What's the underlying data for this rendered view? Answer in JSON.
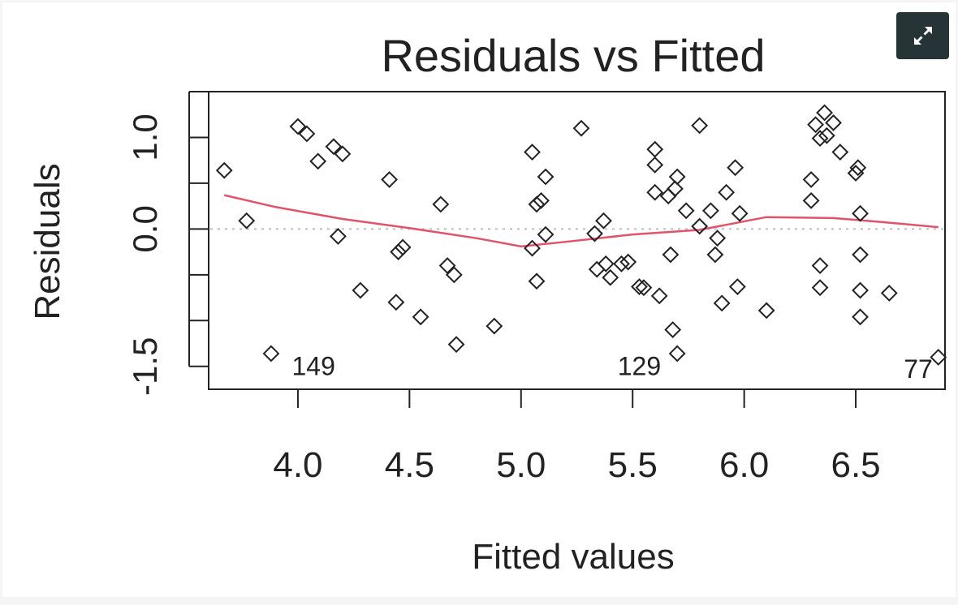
{
  "ui": {
    "expand_button_icon": "expand-arrows-icon"
  },
  "colors": {
    "points": "#222222",
    "smoother": "#df536b",
    "reference": "#bdbdbd",
    "button": "#263437"
  },
  "chart_data": {
    "type": "scatter",
    "title": "Residuals vs Fitted",
    "xlabel": "Fitted values",
    "ylabel": "Residuals",
    "xlim": [
      3.6,
      6.9
    ],
    "ylim": [
      -1.75,
      1.5
    ],
    "xticks": [
      4.0,
      4.5,
      5.0,
      5.5,
      6.0,
      6.5
    ],
    "xtick_labels": [
      "4.0",
      "4.5",
      "5.0",
      "5.5",
      "6.0",
      "6.5"
    ],
    "yticks": [
      -1.5,
      -1.0,
      -0.5,
      0.0,
      0.5,
      1.0,
      1.5
    ],
    "ytick_labels": [
      {
        "value": -1.5,
        "label": "-1.5"
      },
      {
        "value": 0.0,
        "label": "0.0"
      },
      {
        "value": 1.0,
        "label": "1.0"
      }
    ],
    "reference_line": 0.0,
    "points": [
      {
        "x": 3.67,
        "y": 0.64
      },
      {
        "x": 3.77,
        "y": 0.09
      },
      {
        "x": 3.88,
        "y": -1.36
      },
      {
        "x": 4.0,
        "y": 1.12
      },
      {
        "x": 4.04,
        "y": 1.04
      },
      {
        "x": 4.09,
        "y": 0.74
      },
      {
        "x": 4.16,
        "y": 0.9
      },
      {
        "x": 4.2,
        "y": 0.82
      },
      {
        "x": 4.18,
        "y": -0.08
      },
      {
        "x": 4.28,
        "y": -0.67
      },
      {
        "x": 4.41,
        "y": 0.54
      },
      {
        "x": 4.44,
        "y": -0.8
      },
      {
        "x": 4.45,
        "y": -0.25
      },
      {
        "x": 4.47,
        "y": -0.2
      },
      {
        "x": 4.55,
        "y": -0.96
      },
      {
        "x": 4.64,
        "y": 0.27
      },
      {
        "x": 4.67,
        "y": -0.4
      },
      {
        "x": 4.7,
        "y": -0.5
      },
      {
        "x": 4.71,
        "y": -1.26
      },
      {
        "x": 4.88,
        "y": -1.06
      },
      {
        "x": 5.05,
        "y": 0.84
      },
      {
        "x": 5.05,
        "y": -0.21
      },
      {
        "x": 5.07,
        "y": 0.27
      },
      {
        "x": 5.07,
        "y": -0.57
      },
      {
        "x": 5.09,
        "y": 0.31
      },
      {
        "x": 5.11,
        "y": 0.57
      },
      {
        "x": 5.11,
        "y": -0.06
      },
      {
        "x": 5.27,
        "y": 1.1
      },
      {
        "x": 5.33,
        "y": -0.05
      },
      {
        "x": 5.34,
        "y": -0.44
      },
      {
        "x": 5.37,
        "y": 0.09
      },
      {
        "x": 5.38,
        "y": -0.38
      },
      {
        "x": 5.4,
        "y": -0.53
      },
      {
        "x": 5.45,
        "y": -0.38
      },
      {
        "x": 5.48,
        "y": -0.36
      },
      {
        "x": 5.53,
        "y": -0.63
      },
      {
        "x": 5.55,
        "y": -0.64
      },
      {
        "x": 5.6,
        "y": 0.87
      },
      {
        "x": 5.6,
        "y": 0.7
      },
      {
        "x": 5.6,
        "y": 0.4
      },
      {
        "x": 5.62,
        "y": -0.73
      },
      {
        "x": 5.66,
        "y": 0.36
      },
      {
        "x": 5.67,
        "y": -0.28
      },
      {
        "x": 5.68,
        "y": -1.1
      },
      {
        "x": 5.69,
        "y": 0.44
      },
      {
        "x": 5.7,
        "y": 0.57
      },
      {
        "x": 5.7,
        "y": -1.36
      },
      {
        "x": 5.74,
        "y": 0.2
      },
      {
        "x": 5.8,
        "y": 1.13
      },
      {
        "x": 5.8,
        "y": 0.03
      },
      {
        "x": 5.85,
        "y": 0.2
      },
      {
        "x": 5.87,
        "y": -0.28
      },
      {
        "x": 5.88,
        "y": -0.1
      },
      {
        "x": 5.9,
        "y": -0.81
      },
      {
        "x": 5.92,
        "y": 0.4
      },
      {
        "x": 5.96,
        "y": 0.67
      },
      {
        "x": 5.97,
        "y": -0.63
      },
      {
        "x": 5.98,
        "y": 0.17
      },
      {
        "x": 6.1,
        "y": -0.89
      },
      {
        "x": 6.3,
        "y": 0.54
      },
      {
        "x": 6.3,
        "y": 0.31
      },
      {
        "x": 6.32,
        "y": 1.14
      },
      {
        "x": 6.34,
        "y": 0.99
      },
      {
        "x": 6.34,
        "y": -0.4
      },
      {
        "x": 6.34,
        "y": -0.64
      },
      {
        "x": 6.36,
        "y": 1.27
      },
      {
        "x": 6.37,
        "y": 1.02
      },
      {
        "x": 6.4,
        "y": 1.16
      },
      {
        "x": 6.43,
        "y": 0.84
      },
      {
        "x": 6.5,
        "y": 0.61
      },
      {
        "x": 6.51,
        "y": 0.67
      },
      {
        "x": 6.52,
        "y": 0.17
      },
      {
        "x": 6.52,
        "y": -0.28
      },
      {
        "x": 6.52,
        "y": -0.67
      },
      {
        "x": 6.52,
        "y": -0.96
      },
      {
        "x": 6.65,
        "y": -0.7
      },
      {
        "x": 6.87,
        "y": -1.4
      }
    ],
    "smoother": {
      "name": "",
      "x": [
        3.67,
        3.9,
        4.2,
        4.5,
        4.8,
        5.0,
        5.2,
        5.5,
        5.8,
        6.1,
        6.4,
        6.6,
        6.87
      ],
      "y": [
        0.37,
        0.24,
        0.11,
        0.01,
        -0.1,
        -0.19,
        -0.14,
        -0.06,
        -0.01,
        0.13,
        0.12,
        0.08,
        0.02
      ]
    },
    "annotations": [
      {
        "text": "149",
        "x": 4.07,
        "y": -1.49
      },
      {
        "text": "129",
        "x": 5.53,
        "y": -1.49
      },
      {
        "text": "77",
        "x": 6.78,
        "y": -1.52
      }
    ],
    "grid": false,
    "legend": "none"
  }
}
